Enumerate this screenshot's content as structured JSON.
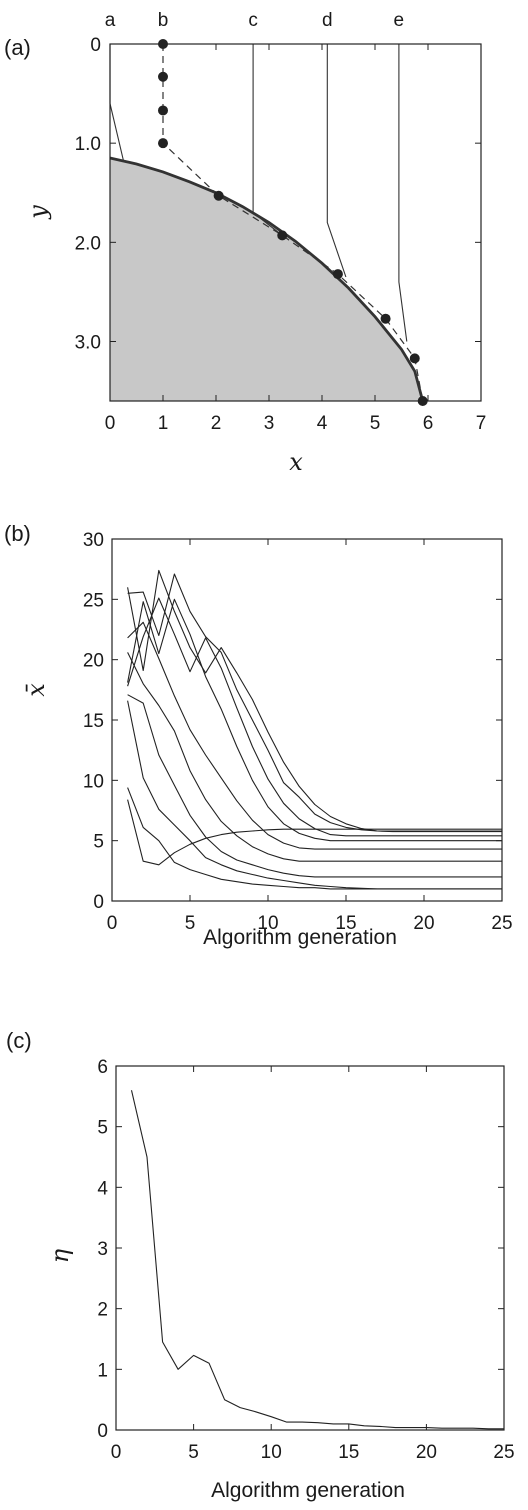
{
  "chart_data": [
    {
      "panel": "(a)",
      "type": "line",
      "xlabel": "x",
      "ylabel": "y",
      "xlim": [
        0,
        7
      ],
      "ylim": [
        0,
        3.6
      ],
      "y_inverted": true,
      "xticks": [
        0,
        1,
        2,
        3,
        4,
        5,
        6,
        7
      ],
      "yticks": [
        0,
        1.0,
        2.0,
        3.0
      ],
      "ytick_labels": [
        "0",
        "1.0",
        "2.0",
        "3.0"
      ],
      "column_labels": [
        {
          "label": "a",
          "x": 0
        },
        {
          "label": "b",
          "x": 1
        },
        {
          "label": "c",
          "x": 2.7
        },
        {
          "label": "d",
          "x": 4.1
        },
        {
          "label": "e",
          "x": 5.45
        }
      ],
      "boundary_curve": {
        "x": [
          0,
          0.5,
          1,
          1.5,
          2,
          2.5,
          3,
          3.5,
          4,
          4.5,
          5,
          5.5,
          5.75,
          5.9
        ],
        "y": [
          1.15,
          1.21,
          1.29,
          1.39,
          1.5,
          1.64,
          1.8,
          1.99,
          2.21,
          2.46,
          2.75,
          3.08,
          3.3,
          3.6
        ]
      },
      "shaded_region": "below boundary curve",
      "trajectory_b": {
        "x": [
          1,
          1,
          1,
          1,
          2.05,
          3.25,
          4.3,
          5.2,
          5.75,
          5.9
        ],
        "y": [
          0,
          0.33,
          0.67,
          1.0,
          1.53,
          1.93,
          2.32,
          2.77,
          3.17,
          3.6
        ],
        "style": "dashed with markers"
      },
      "path_series": [
        {
          "x": [
            0,
            0,
            0.25
          ],
          "y": [
            0,
            0.6,
            1.17
          ]
        },
        {
          "x": [
            2.7,
            2.7,
            3.25
          ],
          "y": [
            0,
            1.7,
            1.93
          ]
        },
        {
          "x": [
            4.1,
            4.1,
            4.45
          ],
          "y": [
            0,
            1.8,
            2.35
          ]
        },
        {
          "x": [
            5.45,
            5.45,
            5.6
          ],
          "y": [
            0,
            2.4,
            3.0
          ]
        }
      ]
    },
    {
      "panel": "(b)",
      "type": "line",
      "xlabel": "Algorithm generation",
      "ylabel": "x̄",
      "xlim": [
        0,
        25
      ],
      "ylim": [
        0,
        30
      ],
      "xticks": [
        0,
        5,
        10,
        15,
        20,
        25
      ],
      "yticks": [
        0,
        5,
        10,
        15,
        20,
        25,
        30
      ],
      "series": [
        {
          "x": [
            1,
            2,
            3,
            4,
            5,
            6,
            7,
            8,
            9,
            10,
            11,
            12,
            13,
            14,
            15,
            16,
            17,
            18,
            19,
            20,
            21,
            22,
            23,
            24,
            25
          ],
          "values": [
            8.4,
            3.3,
            3.0,
            4.0,
            4.7,
            5.2,
            5.5,
            5.7,
            5.8,
            5.9,
            5.95,
            5.95,
            5.95,
            5.95,
            5.95,
            5.95,
            5.95,
            5.95,
            5.95,
            5.95,
            5.95,
            5.95,
            5.95,
            5.95,
            5.95
          ]
        },
        {
          "x": [
            1,
            2,
            3,
            4,
            5,
            6,
            7,
            8,
            9,
            10,
            11,
            12,
            13,
            14,
            15,
            16,
            17,
            18,
            19,
            20,
            21,
            22,
            23,
            24,
            25
          ],
          "values": [
            9.4,
            6.1,
            5.0,
            3.2,
            2.6,
            2.2,
            1.8,
            1.6,
            1.4,
            1.3,
            1.2,
            1.1,
            1.1,
            1.0,
            1.0,
            1.0,
            1.0,
            1.0,
            1.0,
            1.0,
            1.0,
            1.0,
            1.0,
            1.0,
            1.0
          ]
        },
        {
          "x": [
            1,
            2,
            3,
            4,
            5,
            6,
            7,
            8,
            9,
            10,
            11,
            12,
            13,
            14,
            15,
            16,
            17,
            18,
            19,
            20,
            21,
            22,
            23,
            24,
            25
          ],
          "values": [
            16.6,
            10.2,
            7.6,
            6.3,
            5.0,
            3.6,
            3.0,
            2.5,
            2.2,
            1.9,
            1.7,
            1.5,
            1.3,
            1.2,
            1.1,
            1.05,
            1.0,
            1.0,
            1.0,
            1.0,
            1.0,
            1.0,
            1.0,
            1.0,
            1.0
          ]
        },
        {
          "x": [
            1,
            2,
            3,
            4,
            5,
            6,
            7,
            8,
            9,
            10,
            11,
            12,
            13,
            14,
            15,
            16,
            17,
            18,
            19,
            20,
            21,
            22,
            23,
            24,
            25
          ],
          "values": [
            17.1,
            16.4,
            12.1,
            9.6,
            7.1,
            5.3,
            4.1,
            3.4,
            3.0,
            2.6,
            2.3,
            2.1,
            2.0,
            2.0,
            2.0,
            2.0,
            2.0,
            2.0,
            2.0,
            2.0,
            2.0,
            2.0,
            2.0,
            2.0,
            2.0
          ]
        },
        {
          "x": [
            1,
            2,
            3,
            4,
            5,
            6,
            7,
            8,
            9,
            10,
            11,
            12,
            13,
            14,
            15,
            16,
            17,
            18,
            19,
            20,
            21,
            22,
            23,
            24,
            25
          ],
          "values": [
            20.6,
            18.0,
            16.2,
            14.1,
            10.8,
            8.4,
            6.6,
            5.4,
            4.5,
            3.9,
            3.5,
            3.3,
            3.3,
            3.3,
            3.3,
            3.3,
            3.3,
            3.3,
            3.3,
            3.3,
            3.3,
            3.3,
            3.3,
            3.3,
            3.3
          ]
        },
        {
          "x": [
            1,
            2,
            3,
            4,
            5,
            6,
            7,
            8,
            9,
            10,
            11,
            12,
            13,
            14,
            15,
            16,
            17,
            18,
            19,
            20,
            21,
            22,
            23,
            24,
            25
          ],
          "values": [
            21.8,
            23.1,
            20.1,
            17.0,
            14.2,
            12.1,
            10.2,
            8.3,
            6.7,
            5.5,
            4.8,
            4.4,
            4.3,
            4.3,
            4.3,
            4.3,
            4.3,
            4.3,
            4.3,
            4.3,
            4.3,
            4.3,
            4.3,
            4.3,
            4.3
          ]
        },
        {
          "x": [
            1,
            2,
            3,
            4,
            5,
            6,
            7,
            8,
            9,
            10,
            11,
            12,
            13,
            14,
            15,
            16,
            17,
            18,
            19,
            20,
            21,
            22,
            23,
            24,
            25
          ],
          "values": [
            18.1,
            24.8,
            20.5,
            25.0,
            22.1,
            18.6,
            15.9,
            12.8,
            10.0,
            7.8,
            6.4,
            5.6,
            5.2,
            5.0,
            5.0,
            5.0,
            5.0,
            5.0,
            5.0,
            5.0,
            5.0,
            5.0,
            5.0,
            5.0,
            5.0
          ]
        },
        {
          "x": [
            1,
            2,
            3,
            4,
            5,
            6,
            7,
            8,
            9,
            10,
            11,
            12,
            13,
            14,
            15,
            16,
            17,
            18,
            19,
            20,
            21,
            22,
            23,
            24,
            25
          ],
          "values": [
            17.8,
            21.9,
            25.1,
            22.1,
            19.0,
            21.8,
            19.3,
            16.0,
            12.8,
            10.1,
            8.1,
            6.8,
            6.0,
            5.5,
            5.4,
            5.4,
            5.4,
            5.4,
            5.4,
            5.4,
            5.4,
            5.4,
            5.4,
            5.4,
            5.4
          ]
        },
        {
          "x": [
            1,
            2,
            3,
            4,
            5,
            6,
            7,
            8,
            9,
            10,
            11,
            12,
            13,
            14,
            15,
            16,
            17,
            18,
            19,
            20,
            21,
            22,
            23,
            24,
            25
          ],
          "values": [
            26.0,
            19.1,
            27.4,
            24.0,
            21.0,
            18.9,
            21.0,
            18.9,
            16.7,
            14.0,
            11.5,
            9.5,
            8.0,
            7.0,
            6.4,
            6.0,
            5.8,
            5.75,
            5.75,
            5.75,
            5.75,
            5.75,
            5.75,
            5.75,
            5.75
          ]
        },
        {
          "x": [
            1,
            2,
            3,
            4,
            5,
            6,
            7,
            8,
            9,
            10,
            11,
            12,
            13,
            14,
            15,
            16,
            17,
            18,
            19,
            20,
            21,
            22,
            23,
            24,
            25
          ],
          "values": [
            25.5,
            25.6,
            22.0,
            27.1,
            24.0,
            21.9,
            20.6,
            17.5,
            15.0,
            12.5,
            9.8,
            8.6,
            7.2,
            6.5,
            6.1,
            5.9,
            5.8,
            5.8,
            5.8,
            5.8,
            5.8,
            5.8,
            5.8,
            5.8,
            5.8
          ]
        }
      ]
    },
    {
      "panel": "(c)",
      "type": "line",
      "xlabel": "Algorithm generation",
      "ylabel": "η",
      "xlim": [
        0,
        25
      ],
      "ylim": [
        0,
        6
      ],
      "xticks": [
        0,
        5,
        10,
        15,
        20,
        25
      ],
      "yticks": [
        0,
        1,
        2,
        3,
        4,
        5,
        6
      ],
      "series": [
        {
          "x": [
            1,
            2,
            3,
            4,
            5,
            6,
            7,
            8,
            9,
            10,
            11,
            12,
            13,
            14,
            15,
            16,
            17,
            18,
            19,
            20,
            21,
            22,
            23,
            24,
            25
          ],
          "values": [
            5.6,
            4.5,
            1.45,
            1.0,
            1.23,
            1.1,
            0.5,
            0.37,
            0.3,
            0.22,
            0.13,
            0.13,
            0.12,
            0.1,
            0.1,
            0.07,
            0.06,
            0.04,
            0.04,
            0.04,
            0.03,
            0.03,
            0.03,
            0.02,
            0.02
          ]
        }
      ]
    }
  ]
}
